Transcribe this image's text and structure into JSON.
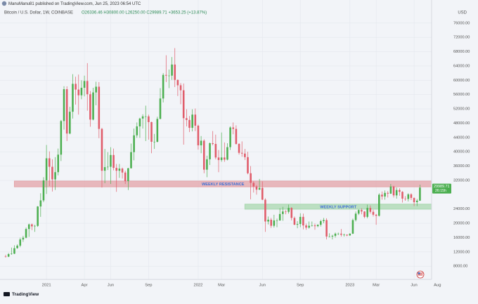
{
  "chart_data": {
    "type": "candlestick",
    "publisher": "ManuManu81 published on TradingView.com, Jun 25, 2023 06:54 UTC",
    "title": "Bitcoin / U.S. Dollar, 1W, COINBASE",
    "subtitle": "O26336.46 H30800.00 L26250.00 C29989.71 +3653.25 (+13.87%)",
    "currency": "USD",
    "logo_text": "TradingView",
    "price_label": "29989.71",
    "countdown_label": "26:15h",
    "up_color": "#4caf50",
    "down_color": "#e05c6a",
    "grid": true,
    "ylim": [
      4300,
      79700
    ],
    "yticks": [
      {
        "value": 8000,
        "label": "8000.00"
      },
      {
        "value": 12000,
        "label": "12000.00"
      },
      {
        "value": 16000,
        "label": "16000.00"
      },
      {
        "value": 20000,
        "label": "20000.00"
      },
      {
        "value": 24000,
        "label": "24000.00"
      },
      {
        "value": 32000,
        "label": "32000.00"
      },
      {
        "value": 36000,
        "label": "36000.00"
      },
      {
        "value": 40000,
        "label": "40000.00"
      },
      {
        "value": 44000,
        "label": "44000.00"
      },
      {
        "value": 48000,
        "label": "48000.00"
      },
      {
        "value": 52000,
        "label": "52000.00"
      },
      {
        "value": 56000,
        "label": "56000.00"
      },
      {
        "value": 60000,
        "label": "60000.00"
      },
      {
        "value": 64000,
        "label": "64000.00"
      },
      {
        "value": 68000,
        "label": "68000.00"
      },
      {
        "value": 72000,
        "label": "72000.00"
      },
      {
        "value": 76000,
        "label": "76000.00"
      }
    ],
    "xlim": [
      -1.93,
      146
    ],
    "xticks": [
      {
        "value": 14,
        "label": "2021"
      },
      {
        "value": 27,
        "label": "Apr"
      },
      {
        "value": 36,
        "label": "Jun"
      },
      {
        "value": 49,
        "label": "Sep"
      },
      {
        "value": 66,
        "label": "2022"
      },
      {
        "value": 74,
        "label": "Mar"
      },
      {
        "value": 88,
        "label": "Jun"
      },
      {
        "value": 101,
        "label": "Sep"
      },
      {
        "value": 118,
        "label": "2023"
      },
      {
        "value": 127,
        "label": "Mar"
      },
      {
        "value": 140,
        "label": "Jun"
      },
      {
        "value": 148,
        "label": "Aug"
      }
    ],
    "zones": [
      {
        "label": "WEEKLY RESISTANCE",
        "from": 30200,
        "to": 31800,
        "start": 3,
        "color": "#e3a3a8",
        "text_color": "#3d6fd6"
      },
      {
        "label": "WEEKLY SUPPORT",
        "from": 23950,
        "to": 25350,
        "start": 82,
        "color": "#a9d8b0",
        "text_color": "#3d6fd6"
      }
    ],
    "candles": [
      [
        10780,
        11200,
        10400,
        10670
      ],
      [
        10670,
        11700,
        10550,
        11380
      ],
      [
        11380,
        13200,
        11200,
        11500
      ],
      [
        11500,
        13850,
        11400,
        13030
      ],
      [
        13030,
        14100,
        12900,
        13750
      ],
      [
        13750,
        15970,
        13300,
        15480
      ],
      [
        15480,
        16500,
        14800,
        15960
      ],
      [
        15960,
        18800,
        15800,
        18400
      ],
      [
        18400,
        19900,
        16200,
        19700
      ],
      [
        19700,
        19900,
        18100,
        19150
      ],
      [
        19150,
        19600,
        17600,
        19270
      ],
      [
        19270,
        24800,
        19000,
        24700
      ],
      [
        24700,
        28400,
        21800,
        26400
      ],
      [
        26400,
        32900,
        25900,
        32000
      ],
      [
        32000,
        41900,
        28200,
        38180
      ],
      [
        38180,
        40100,
        30400,
        35800
      ],
      [
        35800,
        37900,
        28900,
        32280
      ],
      [
        32280,
        38500,
        29300,
        34300
      ],
      [
        34300,
        40900,
        33400,
        39200
      ],
      [
        39200,
        48900,
        37400,
        48600
      ],
      [
        48600,
        58350,
        46200,
        57500
      ],
      [
        57500,
        58300,
        43000,
        45100
      ],
      [
        45100,
        52600,
        44900,
        51200
      ],
      [
        51200,
        61700,
        49300,
        59000
      ],
      [
        59000,
        61000,
        53200,
        57400
      ],
      [
        57400,
        61600,
        50400,
        55800
      ],
      [
        55800,
        60000,
        54700,
        57900
      ],
      [
        57900,
        61300,
        55500,
        59800
      ],
      [
        59800,
        64800,
        51500,
        56100
      ],
      [
        56100,
        57000,
        47000,
        49000
      ],
      [
        49000,
        57900,
        48800,
        56600
      ],
      [
        56600,
        59600,
        53000,
        58200
      ],
      [
        58200,
        59500,
        43800,
        46400
      ],
      [
        46400,
        46700,
        30000,
        34700
      ],
      [
        34700,
        40800,
        31200,
        35700
      ],
      [
        35700,
        39900,
        34900,
        35800
      ],
      [
        35800,
        41300,
        31000,
        39100
      ],
      [
        39100,
        40900,
        34800,
        35500
      ],
      [
        35500,
        36600,
        28800,
        34700
      ],
      [
        34700,
        36600,
        32700,
        35300
      ],
      [
        35300,
        35600,
        32500,
        34200
      ],
      [
        34200,
        34700,
        31000,
        31800
      ],
      [
        31800,
        35500,
        29300,
        35400
      ],
      [
        35400,
        42300,
        35300,
        39900
      ],
      [
        39900,
        46500,
        37600,
        44600
      ],
      [
        44600,
        48200,
        43900,
        47100
      ],
      [
        47100,
        49500,
        43900,
        49300
      ],
      [
        49300,
        50500,
        46500,
        49900
      ],
      [
        49900,
        52900,
        43000,
        49900
      ],
      [
        49900,
        50400,
        43400,
        48300
      ],
      [
        48300,
        48400,
        39600,
        42800
      ],
      [
        42800,
        45000,
        40800,
        42800
      ],
      [
        42800,
        49800,
        42600,
        49200
      ],
      [
        49200,
        57800,
        49100,
        54900
      ],
      [
        54900,
        62000,
        53800,
        61500
      ],
      [
        61500,
        67000,
        59500,
        61300
      ],
      [
        61300,
        63000,
        57800,
        61300
      ],
      [
        61300,
        66500,
        60100,
        64400
      ],
      [
        64400,
        69000,
        58100,
        60100
      ],
      [
        60100,
        60200,
        55600,
        58600
      ],
      [
        58600,
        59200,
        53300,
        57200
      ],
      [
        57200,
        59100,
        42000,
        49400
      ],
      [
        49400,
        51900,
        47100,
        48900
      ],
      [
        48900,
        50000,
        45500,
        46700
      ],
      [
        46700,
        51900,
        45700,
        50400
      ],
      [
        50400,
        52100,
        45800,
        47300
      ],
      [
        47300,
        47600,
        40600,
        41800
      ],
      [
        41800,
        44400,
        39600,
        43100
      ],
      [
        43100,
        43500,
        34000,
        35000
      ],
      [
        35000,
        38900,
        32900,
        37900
      ],
      [
        37900,
        42600,
        36300,
        42400
      ],
      [
        42400,
        45800,
        41800,
        42200
      ],
      [
        42200,
        44800,
        37900,
        38400
      ],
      [
        38400,
        40500,
        34300,
        37700
      ],
      [
        37700,
        45400,
        37200,
        38400
      ],
      [
        38400,
        42600,
        37200,
        37800
      ],
      [
        37800,
        42400,
        37600,
        41300
      ],
      [
        41300,
        47100,
        40500,
        46800
      ],
      [
        46800,
        48200,
        44900,
        46400
      ],
      [
        46400,
        47400,
        42000,
        42200
      ],
      [
        42200,
        42400,
        39200,
        39700
      ],
      [
        39700,
        42900,
        38600,
        39500
      ],
      [
        39500,
        40800,
        37700,
        38500
      ],
      [
        38500,
        40000,
        33700,
        34000
      ],
      [
        34000,
        36000,
        26700,
        31300
      ],
      [
        31300,
        31700,
        28600,
        30300
      ],
      [
        30300,
        30700,
        28000,
        29400
      ],
      [
        29400,
        32400,
        29300,
        29900
      ],
      [
        29900,
        31700,
        26500,
        26600
      ],
      [
        26600,
        27000,
        17600,
        20500
      ],
      [
        20500,
        21900,
        19700,
        21000
      ],
      [
        21000,
        21500,
        18700,
        19300
      ],
      [
        19300,
        22400,
        18800,
        20800
      ],
      [
        20800,
        21300,
        18900,
        20800
      ],
      [
        20800,
        24200,
        20700,
        22600
      ],
      [
        22600,
        24600,
        20700,
        23300
      ],
      [
        23300,
        23700,
        22500,
        23200
      ],
      [
        23200,
        25200,
        22700,
        24300
      ],
      [
        24300,
        24500,
        20800,
        21500
      ],
      [
        21500,
        21900,
        19500,
        19600
      ],
      [
        19600,
        20600,
        18600,
        19800
      ],
      [
        19800,
        22800,
        18900,
        21800
      ],
      [
        21800,
        22700,
        18300,
        19400
      ],
      [
        19400,
        19900,
        18200,
        18800
      ],
      [
        18800,
        20500,
        18500,
        19300
      ],
      [
        19300,
        20500,
        19100,
        19400
      ],
      [
        19400,
        19900,
        18200,
        19200
      ],
      [
        19200,
        19700,
        18900,
        19600
      ],
      [
        19600,
        21000,
        19100,
        20600
      ],
      [
        20600,
        21500,
        20000,
        20900
      ],
      [
        20900,
        21400,
        15500,
        16300
      ],
      [
        16300,
        17200,
        16100,
        16300
      ],
      [
        16300,
        16800,
        15500,
        16500
      ],
      [
        16500,
        17400,
        16000,
        17100
      ],
      [
        17100,
        17400,
        16700,
        17100
      ],
      [
        17100,
        18400,
        16300,
        16800
      ],
      [
        16800,
        17100,
        16300,
        16800
      ],
      [
        16800,
        16900,
        16400,
        16600
      ],
      [
        16600,
        17200,
        16500,
        17100
      ],
      [
        17100,
        21300,
        17000,
        20900
      ],
      [
        20900,
        23300,
        20500,
        22700
      ],
      [
        22700,
        23900,
        22300,
        23700
      ],
      [
        23700,
        24200,
        22500,
        23300
      ],
      [
        23300,
        23400,
        21400,
        21800
      ],
      [
        21800,
        25200,
        21400,
        24300
      ],
      [
        24300,
        25000,
        22700,
        23200
      ],
      [
        23200,
        23800,
        21900,
        22400
      ],
      [
        22400,
        22600,
        19600,
        22100
      ],
      [
        22100,
        28400,
        21900,
        28000
      ],
      [
        28000,
        28900,
        26600,
        27500
      ],
      [
        27500,
        29200,
        26600,
        28500
      ],
      [
        28500,
        29000,
        27200,
        28300
      ],
      [
        28300,
        31000,
        28200,
        30300
      ],
      [
        30300,
        30500,
        27200,
        27800
      ],
      [
        27800,
        30000,
        26900,
        29300
      ],
      [
        29300,
        29800,
        27700,
        28800
      ],
      [
        28800,
        29000,
        25800,
        26900
      ],
      [
        26900,
        27600,
        26300,
        26800
      ],
      [
        26800,
        28400,
        26100,
        28100
      ],
      [
        28100,
        28400,
        26500,
        27100
      ],
      [
        27100,
        27200,
        24800,
        25900
      ],
      [
        25900,
        26800,
        24800,
        26336.46
      ],
      [
        26336.46,
        30800,
        26250,
        29989.71
      ]
    ]
  }
}
